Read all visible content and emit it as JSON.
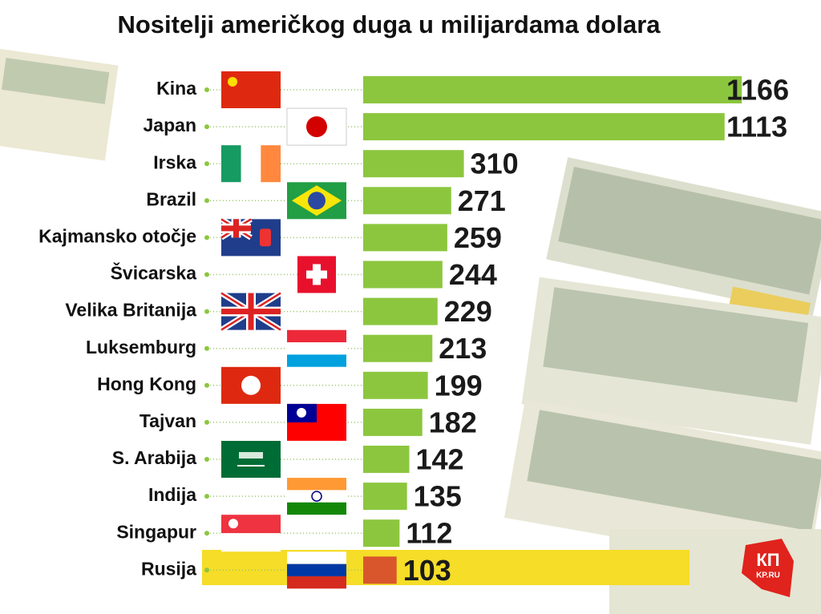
{
  "chart_data": {
    "type": "bar",
    "orientation": "horizontal",
    "title": "Nositelji američkog duga u milijardama dolara",
    "categories": [
      "Kina",
      "Japan",
      "Irska",
      "Brazil",
      "Kajmansko otočje",
      "Švicarska",
      "Velika Britanija",
      "Luksemburg",
      "Hong Kong",
      "Tajvan",
      "S. Arabija",
      "Indija",
      "Singapur",
      "Rusija"
    ],
    "values": [
      1166,
      1113,
      310,
      271,
      259,
      244,
      229,
      213,
      199,
      182,
      142,
      135,
      112,
      103
    ],
    "colors": [
      "#8cc63e",
      "#8cc63e",
      "#8cc63e",
      "#8cc63e",
      "#8cc63e",
      "#8cc63e",
      "#8cc63e",
      "#8cc63e",
      "#8cc63e",
      "#8cc63e",
      "#8cc63e",
      "#8cc63e",
      "#8cc63e",
      "#d9562c"
    ],
    "highlight_band_color": "#f5dd28",
    "logo": "КП",
    "logo_sub": "KP.RU"
  }
}
